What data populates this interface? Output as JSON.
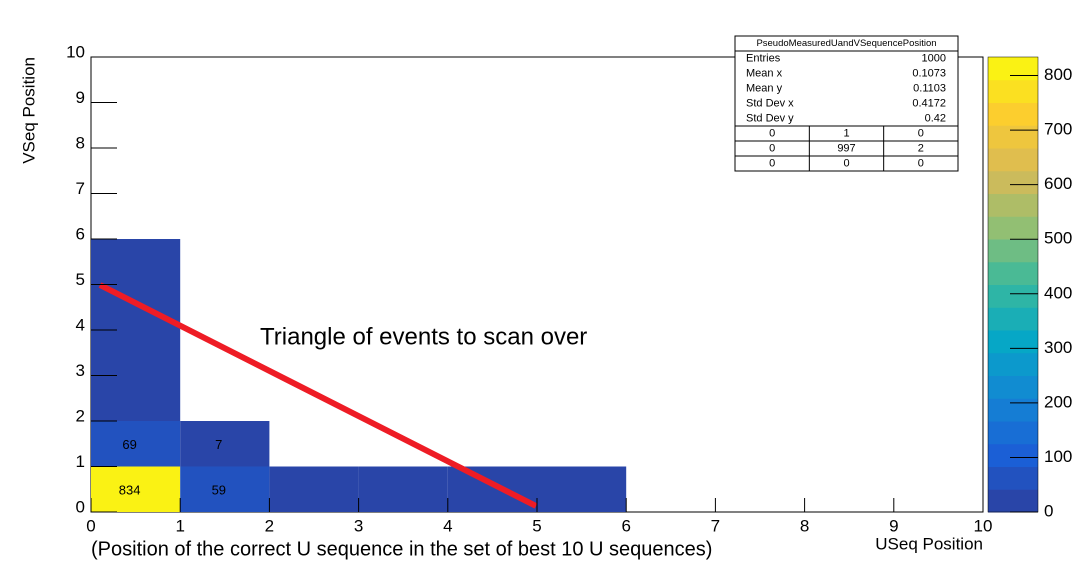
{
  "chart_data": {
    "type": "heatmap",
    "xlabel": "USeq Position",
    "ylabel": "VSeq Position",
    "xlim": [
      0,
      10
    ],
    "ylim": [
      0,
      10
    ],
    "xticks": [
      0,
      1,
      2,
      3,
      4,
      5,
      6,
      7,
      8,
      9,
      10
    ],
    "yticks": [
      0,
      1,
      2,
      3,
      4,
      5,
      6,
      7,
      8,
      9,
      10
    ],
    "zlim": [
      0,
      834
    ],
    "zticks": [
      0,
      100,
      200,
      300,
      400,
      500,
      600,
      700,
      800
    ],
    "palette": [
      "#2c3f9c",
      "#1b5fd6",
      "#1485d4",
      "#06a7c6",
      "#38b99e",
      "#92bf73",
      "#d9ba56",
      "#fcce2e",
      "#f9fb0e"
    ],
    "label_color": "#ff2020",
    "cells": [
      {
        "x": 0,
        "y": 0,
        "value": 834,
        "show_label": true
      },
      {
        "x": 0,
        "y": 1,
        "value": 69,
        "show_label": true
      },
      {
        "x": 1,
        "y": 0,
        "value": 59,
        "show_label": true
      },
      {
        "x": 1,
        "y": 1,
        "value": 7,
        "show_label": true
      },
      {
        "x": 0,
        "y": 2,
        "value": 8,
        "show_label": false
      },
      {
        "x": 0,
        "y": 3,
        "value": 4,
        "show_label": false
      },
      {
        "x": 0,
        "y": 4,
        "value": 3,
        "show_label": false
      },
      {
        "x": 0,
        "y": 5,
        "value": 2,
        "show_label": false
      },
      {
        "x": 2,
        "y": 0,
        "value": 6,
        "show_label": false
      },
      {
        "x": 3,
        "y": 0,
        "value": 4,
        "show_label": false
      },
      {
        "x": 4,
        "y": 0,
        "value": 2,
        "show_label": false
      },
      {
        "x": 5,
        "y": 0,
        "value": 2,
        "show_label": false
      }
    ],
    "stats": {
      "title": "PseudoMeasuredUandVSequencePosition",
      "rows": [
        {
          "label": "Entries",
          "value": 1000
        },
        {
          "label": "Mean x",
          "value": 0.1073
        },
        {
          "label": "Mean y",
          "value": 0.1103
        },
        {
          "label": "Std Dev x",
          "value": 0.4172
        },
        {
          "label": "Std Dev y",
          "value": 0.42
        }
      ],
      "matrix": [
        [
          0,
          1,
          0
        ],
        [
          0,
          997,
          2
        ],
        [
          0,
          0,
          0
        ]
      ]
    },
    "annotations": [
      "Triangle of events to scan over",
      "(Position of the correct U sequence in the set of best 10 U sequences)"
    ]
  }
}
